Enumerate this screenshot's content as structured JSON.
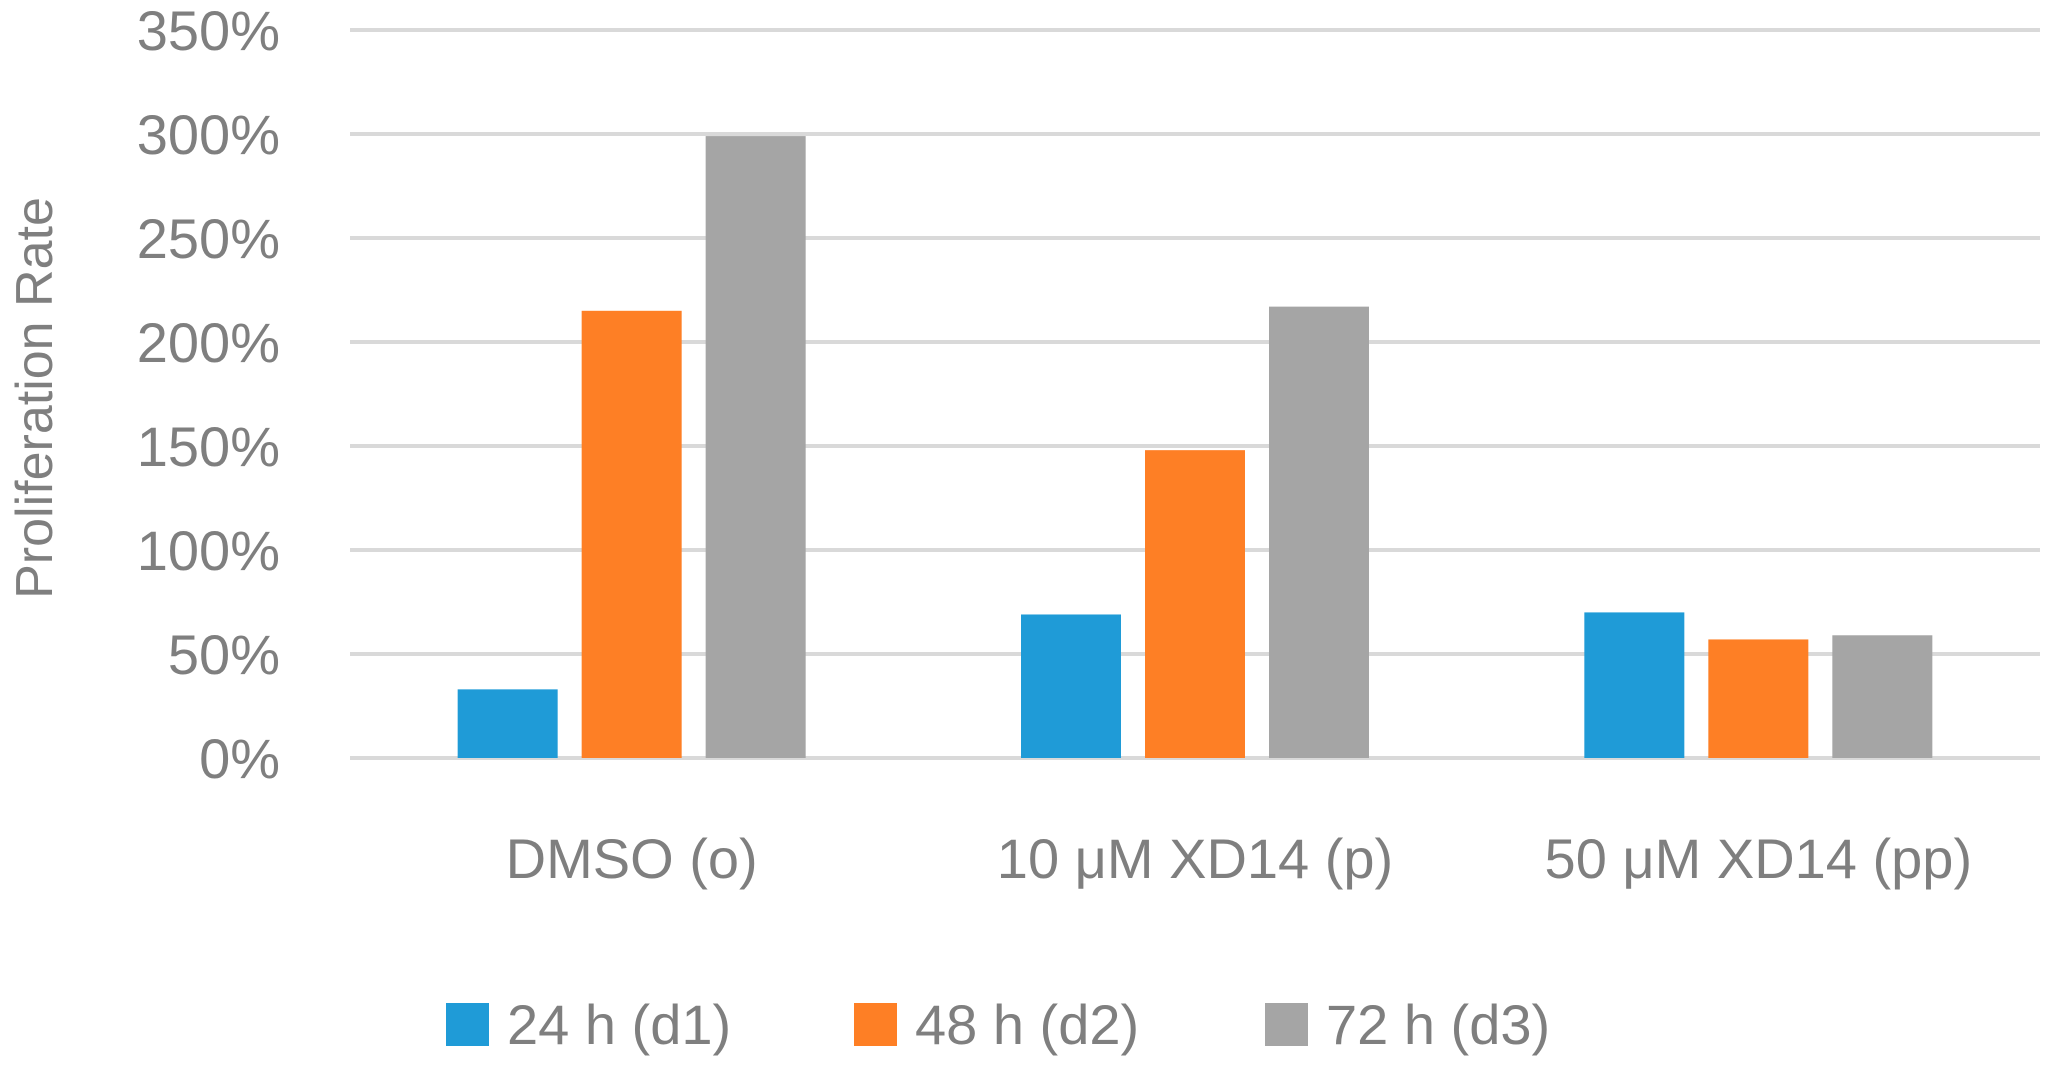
{
  "chart_data": {
    "type": "bar",
    "title": "",
    "xlabel": "",
    "ylabel": "Proliferation Rate",
    "y_unit": "%",
    "ylim": [
      0,
      350
    ],
    "y_ticks": [
      0,
      50,
      100,
      150,
      200,
      250,
      300,
      350
    ],
    "y_tick_labels": [
      "0%",
      "50%",
      "100%",
      "150%",
      "200%",
      "250%",
      "300%",
      "350%"
    ],
    "grid": "horizontal",
    "legend_position": "bottom",
    "categories": [
      "DMSO (o)",
      "10 μM XD14 (p)",
      "50 μM XD14 (pp)"
    ],
    "series": [
      {
        "name": "24 h (d1)",
        "color": "#1f9bd7",
        "values": [
          33,
          69,
          70
        ]
      },
      {
        "name": "48 h (d2)",
        "color": "#fe7f25",
        "values": [
          215,
          148,
          57
        ]
      },
      {
        "name": "72 h (d3)",
        "color": "#a5a5a5",
        "values": [
          299,
          217,
          59
        ]
      }
    ],
    "colors": {
      "grid": "#d9d9d9",
      "text": "#7f7f7f"
    }
  }
}
